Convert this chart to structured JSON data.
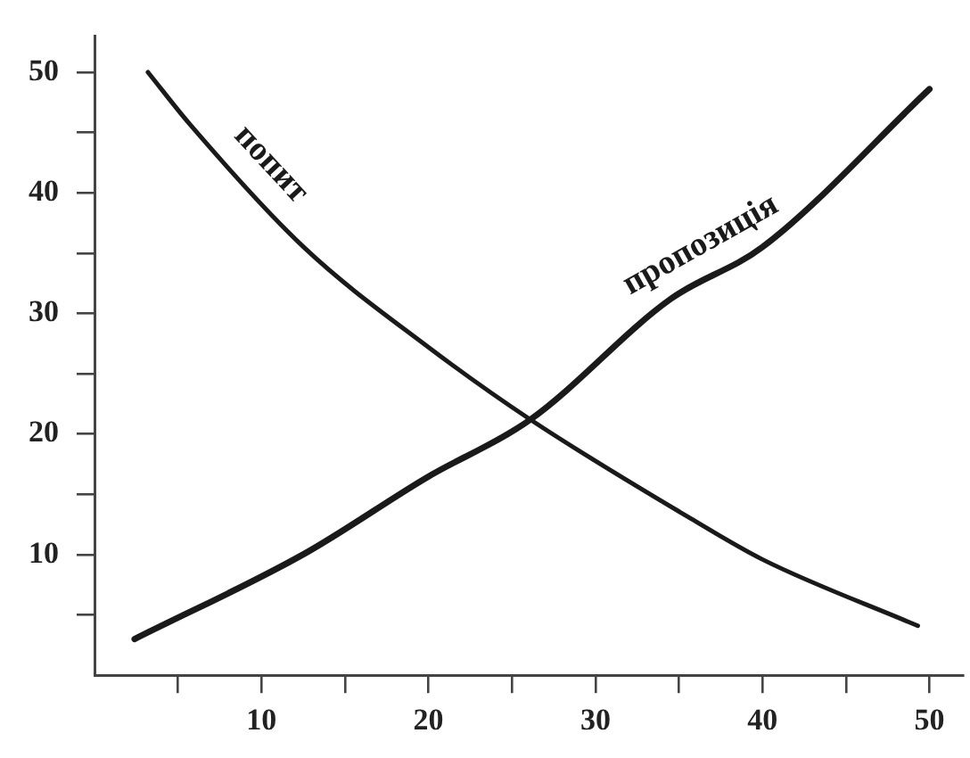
{
  "chart_data": {
    "type": "line",
    "xlim": [
      0,
      52
    ],
    "ylim": [
      0,
      53
    ],
    "xticks": [
      {
        "value": 5,
        "label": null
      },
      10,
      {
        "value": 15,
        "label": null
      },
      20,
      {
        "value": 25,
        "label": null
      },
      30,
      {
        "value": 35,
        "label": null
      },
      40,
      {
        "value": 45,
        "label": null
      },
      50
    ],
    "yticks": [
      {
        "value": 5,
        "label": null
      },
      10,
      {
        "value": 15,
        "label": null
      },
      20,
      {
        "value": 25,
        "label": null
      },
      30,
      {
        "value": 35,
        "label": null
      },
      40,
      {
        "value": 45,
        "label": null
      },
      50
    ],
    "grid": false,
    "legend": false,
    "marker": "none",
    "line_style": "solid",
    "series": [
      {
        "name": "попит",
        "color": "#1a1a1a",
        "x": [
          3.2,
          5.7,
          12.6,
          19.9,
          26.1,
          35.7,
          40,
          49.3
        ],
        "values": [
          50,
          45.7,
          35.4,
          27.3,
          21.2,
          13,
          9.6,
          4.1
        ]
      },
      {
        "name": "пропозиція",
        "color": "#1a1a1a",
        "x": [
          2.4,
          12.6,
          19.9,
          26.1,
          34.5,
          40,
          50
        ],
        "values": [
          3,
          10.1,
          16.4,
          21.2,
          31.2,
          35.5,
          48.6
        ]
      }
    ]
  }
}
